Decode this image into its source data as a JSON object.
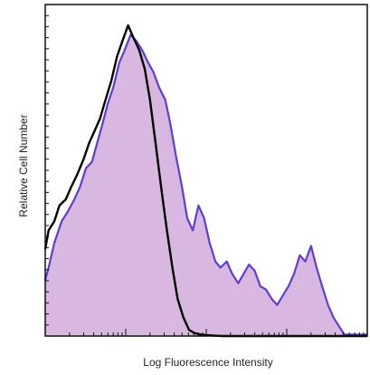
{
  "chart_data": {
    "type": "area",
    "xlabel": "Log Fluorescence Intensity",
    "ylabel": "Relative Cell Number",
    "x_scale": "log",
    "xlim": [
      1,
      10000
    ],
    "ylim": [
      0,
      100
    ],
    "grid": false,
    "legend": "none",
    "series": [
      {
        "style": "filled",
        "color": "#5a3fd6",
        "fill": "#d8b7e0",
        "x": [
          1,
          1.1,
          1.3,
          1.6,
          1.9,
          2.3,
          2.7,
          3.2,
          3.8,
          4.4,
          5.1,
          6.0,
          7.0,
          8.3,
          9.7,
          11.5,
          13.5,
          16,
          19,
          22,
          26,
          31,
          36,
          42,
          50,
          58,
          68,
          80,
          94,
          110,
          130,
          150,
          180,
          210,
          250,
          290,
          340,
          400,
          470,
          550,
          650,
          760,
          890,
          1050,
          1230,
          1450,
          1700,
          2000,
          2350,
          2750,
          3250,
          3800,
          4500,
          5200,
          10000
        ],
        "y": [
          18,
          22,
          30,
          37,
          40,
          44,
          48,
          54,
          56,
          62,
          68,
          75,
          80,
          88,
          92,
          97,
          95,
          92,
          88,
          85,
          80,
          76,
          68,
          58,
          48,
          38,
          34,
          42,
          38,
          30,
          24,
          22,
          24,
          20,
          17,
          20,
          23,
          21,
          16,
          15,
          12,
          10,
          13,
          16,
          20,
          26,
          24,
          29,
          22,
          16,
          10,
          6,
          3,
          0.5,
          0.5
        ]
      },
      {
        "style": "line",
        "color": "#000000",
        "x": [
          1,
          1.1,
          1.3,
          1.5,
          1.8,
          2.1,
          2.5,
          3.0,
          3.5,
          4.1,
          4.8,
          5.6,
          6.6,
          7.8,
          9.1,
          10.7,
          12.5,
          14.7,
          17.2,
          20,
          23.5,
          27.5,
          32,
          38,
          44,
          52,
          61,
          71,
          84,
          98,
          115,
          135,
          160,
          190,
          10000
        ],
        "y": [
          28,
          34,
          37,
          42,
          44,
          48,
          52,
          57,
          62,
          66,
          70,
          76,
          82,
          90,
          95,
          100,
          96,
          92,
          86,
          76,
          62,
          48,
          35,
          22,
          12,
          6,
          2,
          1,
          0.5,
          0.3,
          0.2,
          0.1,
          0,
          0,
          0
        ]
      }
    ]
  }
}
